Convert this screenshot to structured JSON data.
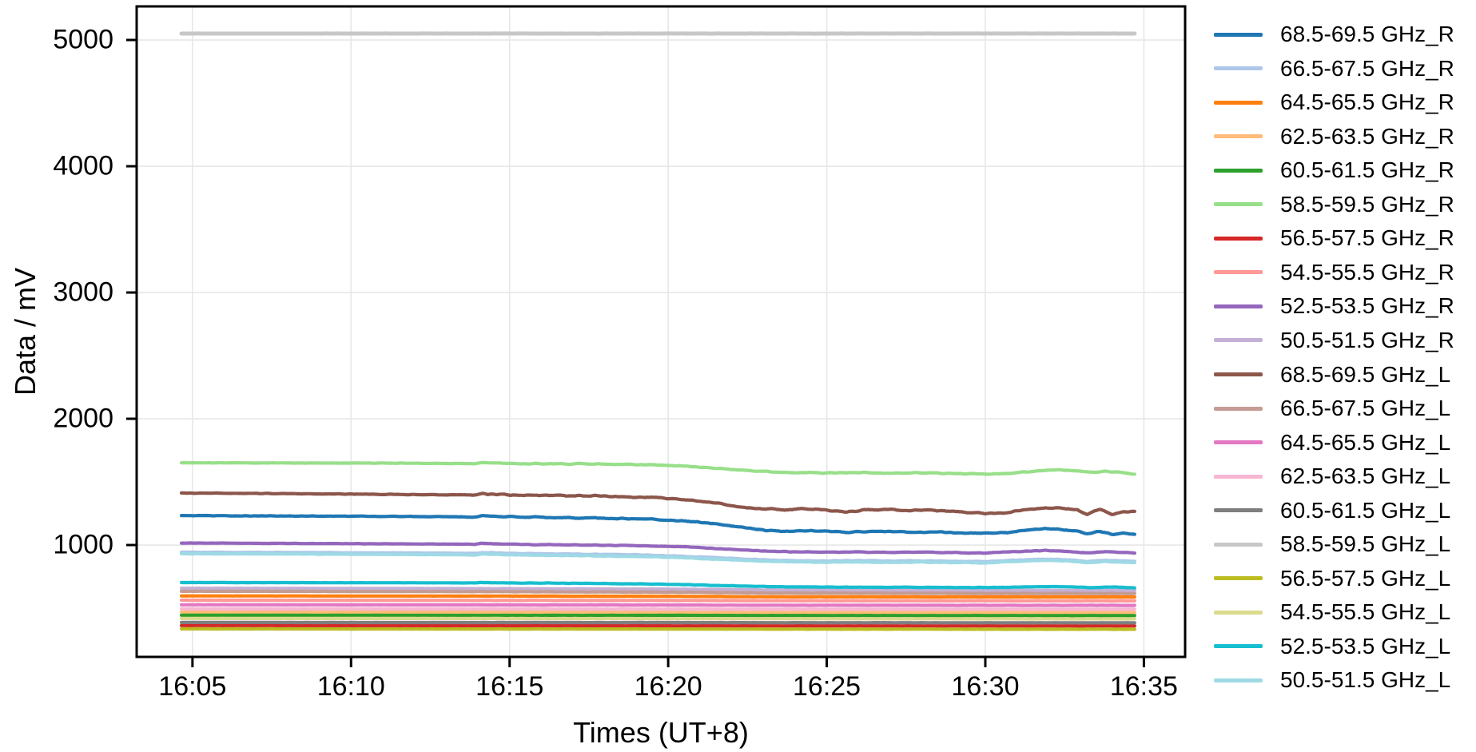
{
  "colors": {
    "background": "#ffffff",
    "grid": "#e7e7e7",
    "axis": "#000000",
    "text": "#000000"
  },
  "chart_data": {
    "type": "line",
    "title": "",
    "xlabel": "Times (UT+8)",
    "ylabel": "Data / mV",
    "grid": true,
    "legend_position": "right-outside",
    "x_axis": {
      "tick_labels": [
        "16:05",
        "16:10",
        "16:15",
        "16:20",
        "16:25",
        "16:30",
        "16:35"
      ],
      "tick_minutes_after_1600": [
        5,
        10,
        15,
        20,
        25,
        30,
        35
      ],
      "xlim_minutes_after_1600": [
        3.24,
        36.3
      ],
      "data_range_minutes_after_1600": [
        4.65,
        34.75
      ]
    },
    "y_axis": {
      "tick_labels": [
        "1000",
        "2000",
        "3000",
        "4000",
        "5000"
      ],
      "tick_values": [
        1000,
        2000,
        3000,
        4000,
        5000
      ],
      "ylim": [
        114,
        5266
      ]
    },
    "series": [
      {
        "name": "68.5-69.5 GHz_R",
        "color": "#1f77b4",
        "noise_mv": 5.5,
        "width": 4.2,
        "keypoints": [
          [
            4.65,
            1233
          ],
          [
            8,
            1230
          ],
          [
            12,
            1226
          ],
          [
            13.9,
            1222
          ],
          [
            14.15,
            1232
          ],
          [
            14.8,
            1224
          ],
          [
            16,
            1220
          ],
          [
            18,
            1213
          ],
          [
            19.5,
            1204
          ],
          [
            20.5,
            1190
          ],
          [
            21.5,
            1168
          ],
          [
            22.3,
            1140
          ],
          [
            23,
            1118
          ],
          [
            23.6,
            1108
          ],
          [
            24.3,
            1115
          ],
          [
            25,
            1108
          ],
          [
            25.6,
            1100
          ],
          [
            26.3,
            1108
          ],
          [
            27,
            1110
          ],
          [
            27.7,
            1100
          ],
          [
            28.4,
            1104
          ],
          [
            29.2,
            1096
          ],
          [
            30,
            1094
          ],
          [
            30.7,
            1098
          ],
          [
            31.3,
            1118
          ],
          [
            31.9,
            1128
          ],
          [
            32.4,
            1122
          ],
          [
            32.9,
            1112
          ],
          [
            33.2,
            1088
          ],
          [
            33.6,
            1108
          ],
          [
            34,
            1082
          ],
          [
            34.35,
            1092
          ],
          [
            34.75,
            1085
          ]
        ]
      },
      {
        "name": "66.5-67.5 GHz_R",
        "color": "#aec7e8",
        "noise_mv": 3.5,
        "width": 4.2,
        "keypoints": [
          [
            4.65,
            943
          ],
          [
            8,
            941
          ],
          [
            12,
            937
          ],
          [
            13.9,
            934
          ],
          [
            14.15,
            941
          ],
          [
            15,
            934
          ],
          [
            17,
            929
          ],
          [
            19,
            922
          ],
          [
            20.5,
            912
          ],
          [
            21.5,
            900
          ],
          [
            22.5,
            888
          ],
          [
            23.3,
            880
          ],
          [
            24,
            877
          ],
          [
            25,
            874
          ],
          [
            26,
            877
          ],
          [
            27,
            873
          ],
          [
            28,
            875
          ],
          [
            29,
            871
          ],
          [
            30,
            869
          ],
          [
            31,
            880
          ],
          [
            31.9,
            889
          ],
          [
            32.6,
            884
          ],
          [
            33.2,
            871
          ],
          [
            33.8,
            880
          ],
          [
            34.3,
            874
          ],
          [
            34.75,
            871
          ]
        ]
      },
      {
        "name": "64.5-65.5 GHz_R",
        "color": "#ff7f0e",
        "noise_mv": 1.2,
        "width": 4.2,
        "keypoints": [
          [
            4.65,
            597
          ],
          [
            14,
            596
          ],
          [
            20,
            594
          ],
          [
            21.5,
            592
          ],
          [
            23,
            590
          ],
          [
            30,
            589
          ],
          [
            34.75,
            589
          ]
        ]
      },
      {
        "name": "62.5-63.5 GHz_R",
        "color": "#ffbb78",
        "noise_mv": 1.2,
        "width": 4.2,
        "keypoints": [
          [
            4.65,
            469
          ],
          [
            14,
            468
          ],
          [
            20,
            467
          ],
          [
            23,
            466
          ],
          [
            34.75,
            465
          ]
        ]
      },
      {
        "name": "60.5-61.5 GHz_R",
        "color": "#2ca02c",
        "noise_mv": 1.1,
        "width": 4.2,
        "keypoints": [
          [
            4.65,
            444
          ],
          [
            14,
            443
          ],
          [
            20,
            443
          ],
          [
            23,
            442
          ],
          [
            34.75,
            441
          ]
        ]
      },
      {
        "name": "58.5-59.5 GHz_R",
        "color": "#98df8a",
        "noise_mv": 4.5,
        "width": 4.2,
        "keypoints": [
          [
            4.65,
            1652
          ],
          [
            8,
            1650
          ],
          [
            12,
            1648
          ],
          [
            13.9,
            1645
          ],
          [
            14.15,
            1654
          ],
          [
            14.9,
            1647
          ],
          [
            16,
            1645
          ],
          [
            18,
            1641
          ],
          [
            19.5,
            1635
          ],
          [
            20.5,
            1625
          ],
          [
            21.5,
            1608
          ],
          [
            22.4,
            1592
          ],
          [
            23.2,
            1582
          ],
          [
            24,
            1574
          ],
          [
            25,
            1571
          ],
          [
            26,
            1574
          ],
          [
            27,
            1569
          ],
          [
            28,
            1572
          ],
          [
            29,
            1566
          ],
          [
            30,
            1563
          ],
          [
            30.8,
            1568
          ],
          [
            31.5,
            1585
          ],
          [
            32.2,
            1596
          ],
          [
            32.8,
            1590
          ],
          [
            33.3,
            1576
          ],
          [
            33.8,
            1584
          ],
          [
            34.2,
            1576
          ],
          [
            34.75,
            1562
          ]
        ]
      },
      {
        "name": "56.5-57.5 GHz_R",
        "color": "#d62728",
        "noise_mv": 1.0,
        "width": 4.2,
        "keypoints": [
          [
            4.65,
            362
          ],
          [
            14,
            361
          ],
          [
            20,
            360
          ],
          [
            23,
            360
          ],
          [
            34.75,
            359
          ]
        ]
      },
      {
        "name": "54.5-55.5 GHz_R",
        "color": "#ff9896",
        "noise_mv": 1.1,
        "width": 4.2,
        "keypoints": [
          [
            4.65,
            563
          ],
          [
            14,
            562
          ],
          [
            20,
            561
          ],
          [
            23,
            559
          ],
          [
            34.75,
            558
          ]
        ]
      },
      {
        "name": "52.5-53.5 GHz_R",
        "color": "#9467bd",
        "noise_mv": 3.5,
        "width": 4.2,
        "keypoints": [
          [
            4.65,
            1016
          ],
          [
            8,
            1013
          ],
          [
            12,
            1009
          ],
          [
            13.9,
            1006
          ],
          [
            14.15,
            1013
          ],
          [
            15,
            1006
          ],
          [
            17,
            1001
          ],
          [
            19,
            995
          ],
          [
            20.5,
            986
          ],
          [
            21.5,
            972
          ],
          [
            22.5,
            958
          ],
          [
            23.3,
            950
          ],
          [
            24,
            946
          ],
          [
            25,
            943
          ],
          [
            26,
            946
          ],
          [
            27,
            941
          ],
          [
            28,
            944
          ],
          [
            29,
            939
          ],
          [
            30,
            937
          ],
          [
            31,
            948
          ],
          [
            31.9,
            957
          ],
          [
            32.6,
            951
          ],
          [
            33.2,
            938
          ],
          [
            33.8,
            948
          ],
          [
            34.3,
            942
          ],
          [
            34.75,
            938
          ]
        ]
      },
      {
        "name": "50.5-51.5 GHz_R",
        "color": "#c5b0d5",
        "noise_mv": 1.3,
        "width": 4.2,
        "keypoints": [
          [
            4.65,
            658
          ],
          [
            14,
            655
          ],
          [
            20,
            651
          ],
          [
            21.5,
            648
          ],
          [
            23,
            644
          ],
          [
            30,
            641
          ],
          [
            34.75,
            640
          ]
        ]
      },
      {
        "name": "68.5-69.5 GHz_L",
        "color": "#8c564b",
        "noise_mv": 6.5,
        "width": 4.2,
        "keypoints": [
          [
            4.65,
            1412
          ],
          [
            8,
            1407
          ],
          [
            12,
            1400
          ],
          [
            13.9,
            1396
          ],
          [
            14.15,
            1408
          ],
          [
            14.9,
            1398
          ],
          [
            16,
            1394
          ],
          [
            18,
            1387
          ],
          [
            19.5,
            1377
          ],
          [
            20.5,
            1360
          ],
          [
            21.5,
            1332
          ],
          [
            22.3,
            1300
          ],
          [
            23,
            1288
          ],
          [
            23.6,
            1280
          ],
          [
            24.3,
            1290
          ],
          [
            25,
            1278
          ],
          [
            25.6,
            1262
          ],
          [
            26.3,
            1280
          ],
          [
            27,
            1284
          ],
          [
            27.7,
            1272
          ],
          [
            28.4,
            1276
          ],
          [
            29.2,
            1262
          ],
          [
            30,
            1252
          ],
          [
            30.7,
            1256
          ],
          [
            31.3,
            1282
          ],
          [
            31.9,
            1296
          ],
          [
            32.4,
            1290
          ],
          [
            32.9,
            1278
          ],
          [
            33.2,
            1242
          ],
          [
            33.6,
            1288
          ],
          [
            34,
            1236
          ],
          [
            34.35,
            1268
          ],
          [
            34.75,
            1262
          ]
        ]
      },
      {
        "name": "66.5-67.5 GHz_L",
        "color": "#c49c94",
        "noise_mv": 1.6,
        "width": 4.2,
        "keypoints": [
          [
            4.65,
            634
          ],
          [
            14,
            631
          ],
          [
            20,
            627
          ],
          [
            21.5,
            624
          ],
          [
            23,
            620
          ],
          [
            30,
            617
          ],
          [
            34.75,
            616
          ]
        ]
      },
      {
        "name": "64.5-65.5 GHz_L",
        "color": "#e377c2",
        "noise_mv": 1.2,
        "width": 4.2,
        "keypoints": [
          [
            4.65,
            527
          ],
          [
            14,
            526
          ],
          [
            20,
            525
          ],
          [
            23,
            523
          ],
          [
            34.75,
            522
          ]
        ]
      },
      {
        "name": "62.5-63.5 GHz_L",
        "color": "#f7b6d2",
        "noise_mv": 1.2,
        "width": 4.2,
        "keypoints": [
          [
            4.65,
            495
          ],
          [
            14,
            494
          ],
          [
            20,
            493
          ],
          [
            23,
            492
          ],
          [
            34.75,
            491
          ]
        ]
      },
      {
        "name": "60.5-61.5 GHz_L",
        "color": "#7f7f7f",
        "noise_mv": 1.0,
        "width": 4.2,
        "keypoints": [
          [
            4.65,
            387
          ],
          [
            14,
            386
          ],
          [
            20,
            386
          ],
          [
            23,
            385
          ],
          [
            34.75,
            384
          ]
        ]
      },
      {
        "name": "58.5-59.5 GHz_L",
        "color": "#c7c7c7",
        "noise_mv": 0.8,
        "width": 5.0,
        "keypoints": [
          [
            4.65,
            5051
          ],
          [
            34.75,
            5051
          ]
        ]
      },
      {
        "name": "56.5-57.5 GHz_L",
        "color": "#bcbd22",
        "noise_mv": 1.0,
        "width": 4.2,
        "keypoints": [
          [
            4.65,
            336
          ],
          [
            14,
            335
          ],
          [
            20,
            335
          ],
          [
            23,
            334
          ],
          [
            34.75,
            333
          ]
        ]
      },
      {
        "name": "54.5-55.5 GHz_L",
        "color": "#dbdb8d",
        "noise_mv": 1.1,
        "width": 4.2,
        "keypoints": [
          [
            4.65,
            419
          ],
          [
            14,
            418
          ],
          [
            20,
            417
          ],
          [
            23,
            416
          ],
          [
            34.75,
            415
          ]
        ]
      },
      {
        "name": "52.5-53.5 GHz_L",
        "color": "#17becf",
        "noise_mv": 2.2,
        "width": 4.2,
        "keypoints": [
          [
            4.65,
            703
          ],
          [
            8,
            702
          ],
          [
            12,
            701
          ],
          [
            13.9,
            700
          ],
          [
            14.15,
            704
          ],
          [
            15,
            700
          ],
          [
            17,
            697
          ],
          [
            19,
            693
          ],
          [
            20.5,
            687
          ],
          [
            21.5,
            680
          ],
          [
            22.5,
            674
          ],
          [
            23.3,
            670
          ],
          [
            24.5,
            668
          ],
          [
            26,
            666
          ],
          [
            28,
            665
          ],
          [
            30,
            663
          ],
          [
            31,
            667
          ],
          [
            32,
            671
          ],
          [
            32.8,
            668
          ],
          [
            33.4,
            663
          ],
          [
            34,
            668
          ],
          [
            34.75,
            661
          ]
        ]
      },
      {
        "name": "50.5-51.5 GHz_L",
        "color": "#9edae5",
        "noise_mv": 3.5,
        "width": 4.2,
        "keypoints": [
          [
            4.65,
            931
          ],
          [
            8,
            929
          ],
          [
            12,
            925
          ],
          [
            13.9,
            922
          ],
          [
            14.15,
            929
          ],
          [
            15,
            922
          ],
          [
            17,
            917
          ],
          [
            19,
            910
          ],
          [
            20.5,
            901
          ],
          [
            21.5,
            889
          ],
          [
            22.5,
            878
          ],
          [
            23.3,
            870
          ],
          [
            24,
            867
          ],
          [
            25,
            864
          ],
          [
            26,
            867
          ],
          [
            27,
            863
          ],
          [
            28,
            865
          ],
          [
            29,
            861
          ],
          [
            30,
            859
          ],
          [
            31,
            870
          ],
          [
            31.9,
            879
          ],
          [
            32.6,
            874
          ],
          [
            33.2,
            861
          ],
          [
            33.8,
            870
          ],
          [
            34.3,
            864
          ],
          [
            34.75,
            861
          ]
        ]
      }
    ]
  }
}
